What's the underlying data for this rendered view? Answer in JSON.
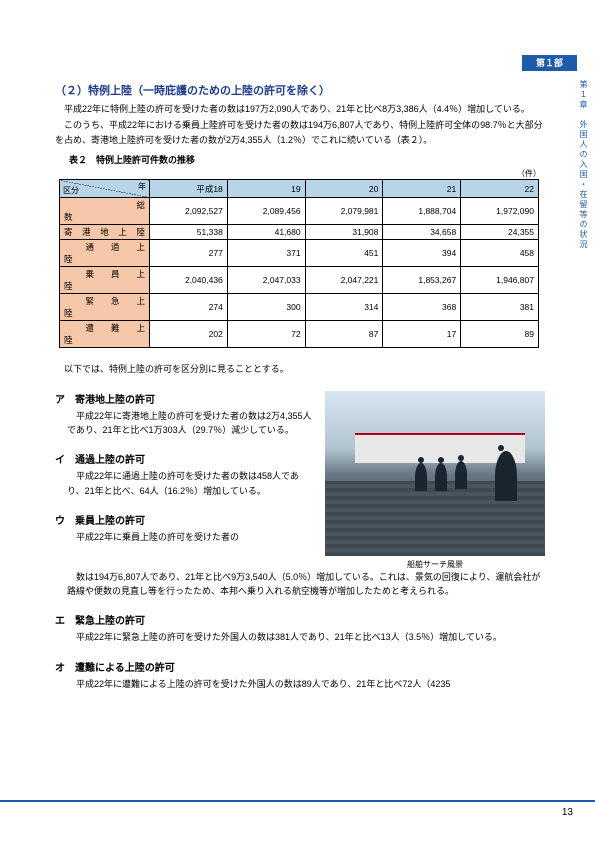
{
  "part_tab": "第１部",
  "side_text": "第１章　外国人の入国・在留等の状況",
  "section_title": "（２）特例上陸（一時庇護のための上陸の許可を除く）",
  "intro_1": "平成22年に特例上陸の許可を受けた者の数は197万2,090人であり、21年と比べ8万3,386人（4.4％）増加している。",
  "intro_2": "このうち、平成22年における乗員上陸許可を受けた者の数は194万6,807人であり、特例上陸許可全体の98.7％と大部分を占め、寄港地上陸許可を受けた者の数が2万4,355人（1.2％）でこれに続いている（表２）。",
  "table_caption": "表２　特例上陸許可件数の推移",
  "table_unit": "（件）",
  "diag_left": "区分",
  "diag_right": "年",
  "table": {
    "headers": [
      "平成18",
      "19",
      "20",
      "21",
      "22"
    ],
    "rows": [
      {
        "label": "総　　　　　　　　数",
        "cells": [
          "2,092,527",
          "2,089,456",
          "2,079,981",
          "1,888,704",
          "1,972,090"
        ]
      },
      {
        "label": "寄　港　地　上　陸",
        "cells": [
          "51,338",
          "41,680",
          "31,908",
          "34,658",
          "24,355"
        ]
      },
      {
        "label": "通　　過　　上　　陸",
        "cells": [
          "277",
          "371",
          "451",
          "394",
          "458"
        ]
      },
      {
        "label": "乗　　員　　上　　陸",
        "cells": [
          "2,040,436",
          "2,047,033",
          "2,047,221",
          "1,853,267",
          "1,946,807"
        ]
      },
      {
        "label": "緊　　急　　上　　陸",
        "cells": [
          "274",
          "300",
          "314",
          "368",
          "381"
        ]
      },
      {
        "label": "遭　　難　　上　　陸",
        "cells": [
          "202",
          "72",
          "87",
          "17",
          "89"
        ]
      }
    ]
  },
  "divider_text": "以下では、特例上陸の許可を区分別に見ることとする。",
  "sub_a_head": "ア　寄港地上陸の許可",
  "sub_a_text": "平成22年に寄港地上陸の許可を受けた者の数は2万4,355人であり、21年と比べ1万303人（29.7％）減少している。",
  "sub_i_head": "イ　通過上陸の許可",
  "sub_i_text": "平成22年に通過上陸の許可を受けた者の数は458人であり、21年と比べ、64人（16.2％）増加している。",
  "sub_u_head": "ウ　乗員上陸の許可",
  "sub_u_text_1": "平成22年に乗員上陸の許可を受けた者の",
  "photo_caption": "船舶サーチ風景",
  "sub_u_text_2": "数は194万6,807人であり、21年と比べ9万3,540人（5.0％）増加している。これは、景気の回復により、運航会社が路線や便数の見直し等を行ったため、本邦へ乗り入れる航空機等が増加したためと考えられる。",
  "sub_e_head": "エ　緊急上陸の許可",
  "sub_e_text": "平成22年に緊急上陸の許可を受けた外国人の数は381人であり、21年と比べ13人（3.5％）増加している。",
  "sub_o_head": "オ　遭難による上陸の許可",
  "sub_o_text": "平成22年に遭難による上陸の許可を受けた外国人の数は89人であり、21年と比べ72人（4235",
  "page_number": "13"
}
